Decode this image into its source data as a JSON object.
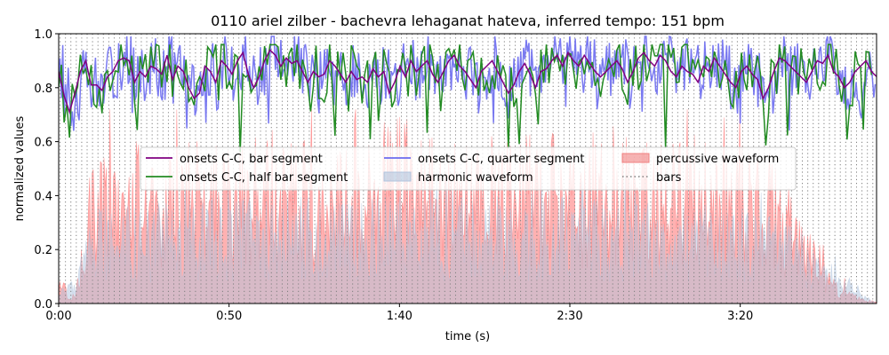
{
  "chart_data": {
    "type": "line",
    "title": "0110 ariel zilber - bachevra lehaganat hateva, inferred tempo: 151 bpm",
    "xlabel": "time (s)",
    "ylabel": "normalized values",
    "xlim": [
      0,
      240
    ],
    "ylim": [
      0,
      1.0
    ],
    "x_tick_values": [
      0,
      50,
      100,
      150,
      200
    ],
    "x_tick_labels": [
      "0:00",
      "0:50",
      "1:40",
      "2:30",
      "3:20"
    ],
    "y_tick_values": [
      0.0,
      0.2,
      0.4,
      0.6,
      0.8,
      1.0
    ],
    "y_tick_labels": [
      "0.0",
      "0.2",
      "0.4",
      "0.6",
      "0.8",
      "1.0"
    ],
    "grid": false,
    "legend_position": "center",
    "legend": [
      {
        "label": "onsets C-C, bar segment",
        "kind": "line",
        "color": "#800080"
      },
      {
        "label": "onsets C-C, half bar segment",
        "kind": "line",
        "color": "#228b22"
      },
      {
        "label": "onsets C-C, quarter segment",
        "kind": "line",
        "color": "#6b6bef"
      },
      {
        "label": "harmonic waveform",
        "kind": "patch",
        "color": "#b0c4de"
      },
      {
        "label": "percussive waveform",
        "kind": "patch",
        "color": "#f08080"
      },
      {
        "label": "bars",
        "kind": "dotted",
        "color": "#808080"
      }
    ],
    "bars_vlines": {
      "start": 0.4,
      "interval": 1.59,
      "end": 240
    },
    "series": [
      {
        "name": "onsets C-C, bar segment",
        "color": "#800080",
        "interval": 1.59,
        "values": [
          0.86,
          0.77,
          0.71,
          0.78,
          0.86,
          0.9,
          0.81,
          0.81,
          0.79,
          0.84,
          0.86,
          0.9,
          0.91,
          0.9,
          0.82,
          0.86,
          0.84,
          0.88,
          0.87,
          0.85,
          0.92,
          0.83,
          0.88,
          0.86,
          0.8,
          0.76,
          0.78,
          0.88,
          0.86,
          0.82,
          0.9,
          0.88,
          0.85,
          0.9,
          0.93,
          0.85,
          0.8,
          0.84,
          0.9,
          0.94,
          0.92,
          0.88,
          0.91,
          0.89,
          0.9,
          0.86,
          0.82,
          0.86,
          0.84,
          0.85,
          0.9,
          0.88,
          0.85,
          0.82,
          0.86,
          0.83,
          0.84,
          0.82,
          0.87,
          0.84,
          0.86,
          0.78,
          0.82,
          0.88,
          0.84,
          0.9,
          0.86,
          0.88,
          0.9,
          0.85,
          0.82,
          0.86,
          0.9,
          0.92,
          0.88,
          0.86,
          0.83,
          0.8,
          0.86,
          0.88,
          0.9,
          0.86,
          0.82,
          0.78,
          0.81,
          0.86,
          0.89,
          0.85,
          0.8,
          0.86,
          0.87,
          0.9,
          0.92,
          0.88,
          0.93,
          0.9,
          0.88,
          0.92,
          0.89,
          0.86,
          0.84,
          0.86,
          0.88,
          0.9,
          0.87,
          0.82,
          0.86,
          0.91,
          0.93,
          0.9,
          0.88,
          0.92,
          0.9,
          0.86,
          0.84,
          0.88,
          0.86,
          0.85,
          0.82,
          0.88,
          0.86,
          0.91,
          0.88,
          0.85,
          0.82,
          0.8,
          0.86,
          0.88,
          0.85,
          0.83,
          0.76,
          0.8,
          0.86,
          0.91,
          0.9,
          0.88,
          0.86,
          0.84,
          0.82,
          0.86,
          0.9,
          0.89,
          0.92,
          0.86,
          0.84,
          0.8,
          0.82,
          0.86,
          0.88,
          0.9,
          0.86,
          0.84,
          0.82,
          0.86,
          0.89
        ]
      },
      {
        "name": "onsets C-C, half bar segment",
        "color": "#228b22",
        "interval": 0.795,
        "seed": 7,
        "min": 0.56,
        "max": 0.96
      },
      {
        "name": "onsets C-C, quarter segment",
        "color": "#6b6bef",
        "interval": 0.4,
        "seed": 13,
        "min": 0.64,
        "max": 0.99
      }
    ],
    "waveforms": [
      {
        "name": "percussive waveform",
        "color": "#ff6464",
        "opacity": 0.5,
        "envelope_t": [
          0,
          1,
          2,
          3,
          5,
          6,
          7,
          10,
          20,
          40,
          60,
          80,
          100,
          120,
          140,
          160,
          180,
          200,
          210,
          215,
          222,
          226,
          229,
          232,
          235,
          240
        ],
        "envelope_v": [
          0.08,
          0.05,
          0.1,
          0.02,
          0.04,
          0.15,
          0.25,
          0.45,
          0.52,
          0.5,
          0.56,
          0.5,
          0.58,
          0.5,
          0.55,
          0.5,
          0.55,
          0.5,
          0.45,
          0.35,
          0.22,
          0.12,
          0.08,
          0.05,
          0.02,
          0.01
        ]
      },
      {
        "name": "harmonic waveform",
        "color": "#b0c4de",
        "opacity": 0.5,
        "envelope_t": [
          0,
          5,
          10,
          40,
          100,
          150,
          200,
          215,
          225,
          235,
          240
        ],
        "envelope_v": [
          0.05,
          0.08,
          0.3,
          0.32,
          0.34,
          0.33,
          0.3,
          0.25,
          0.15,
          0.04,
          0.0
        ]
      }
    ]
  }
}
